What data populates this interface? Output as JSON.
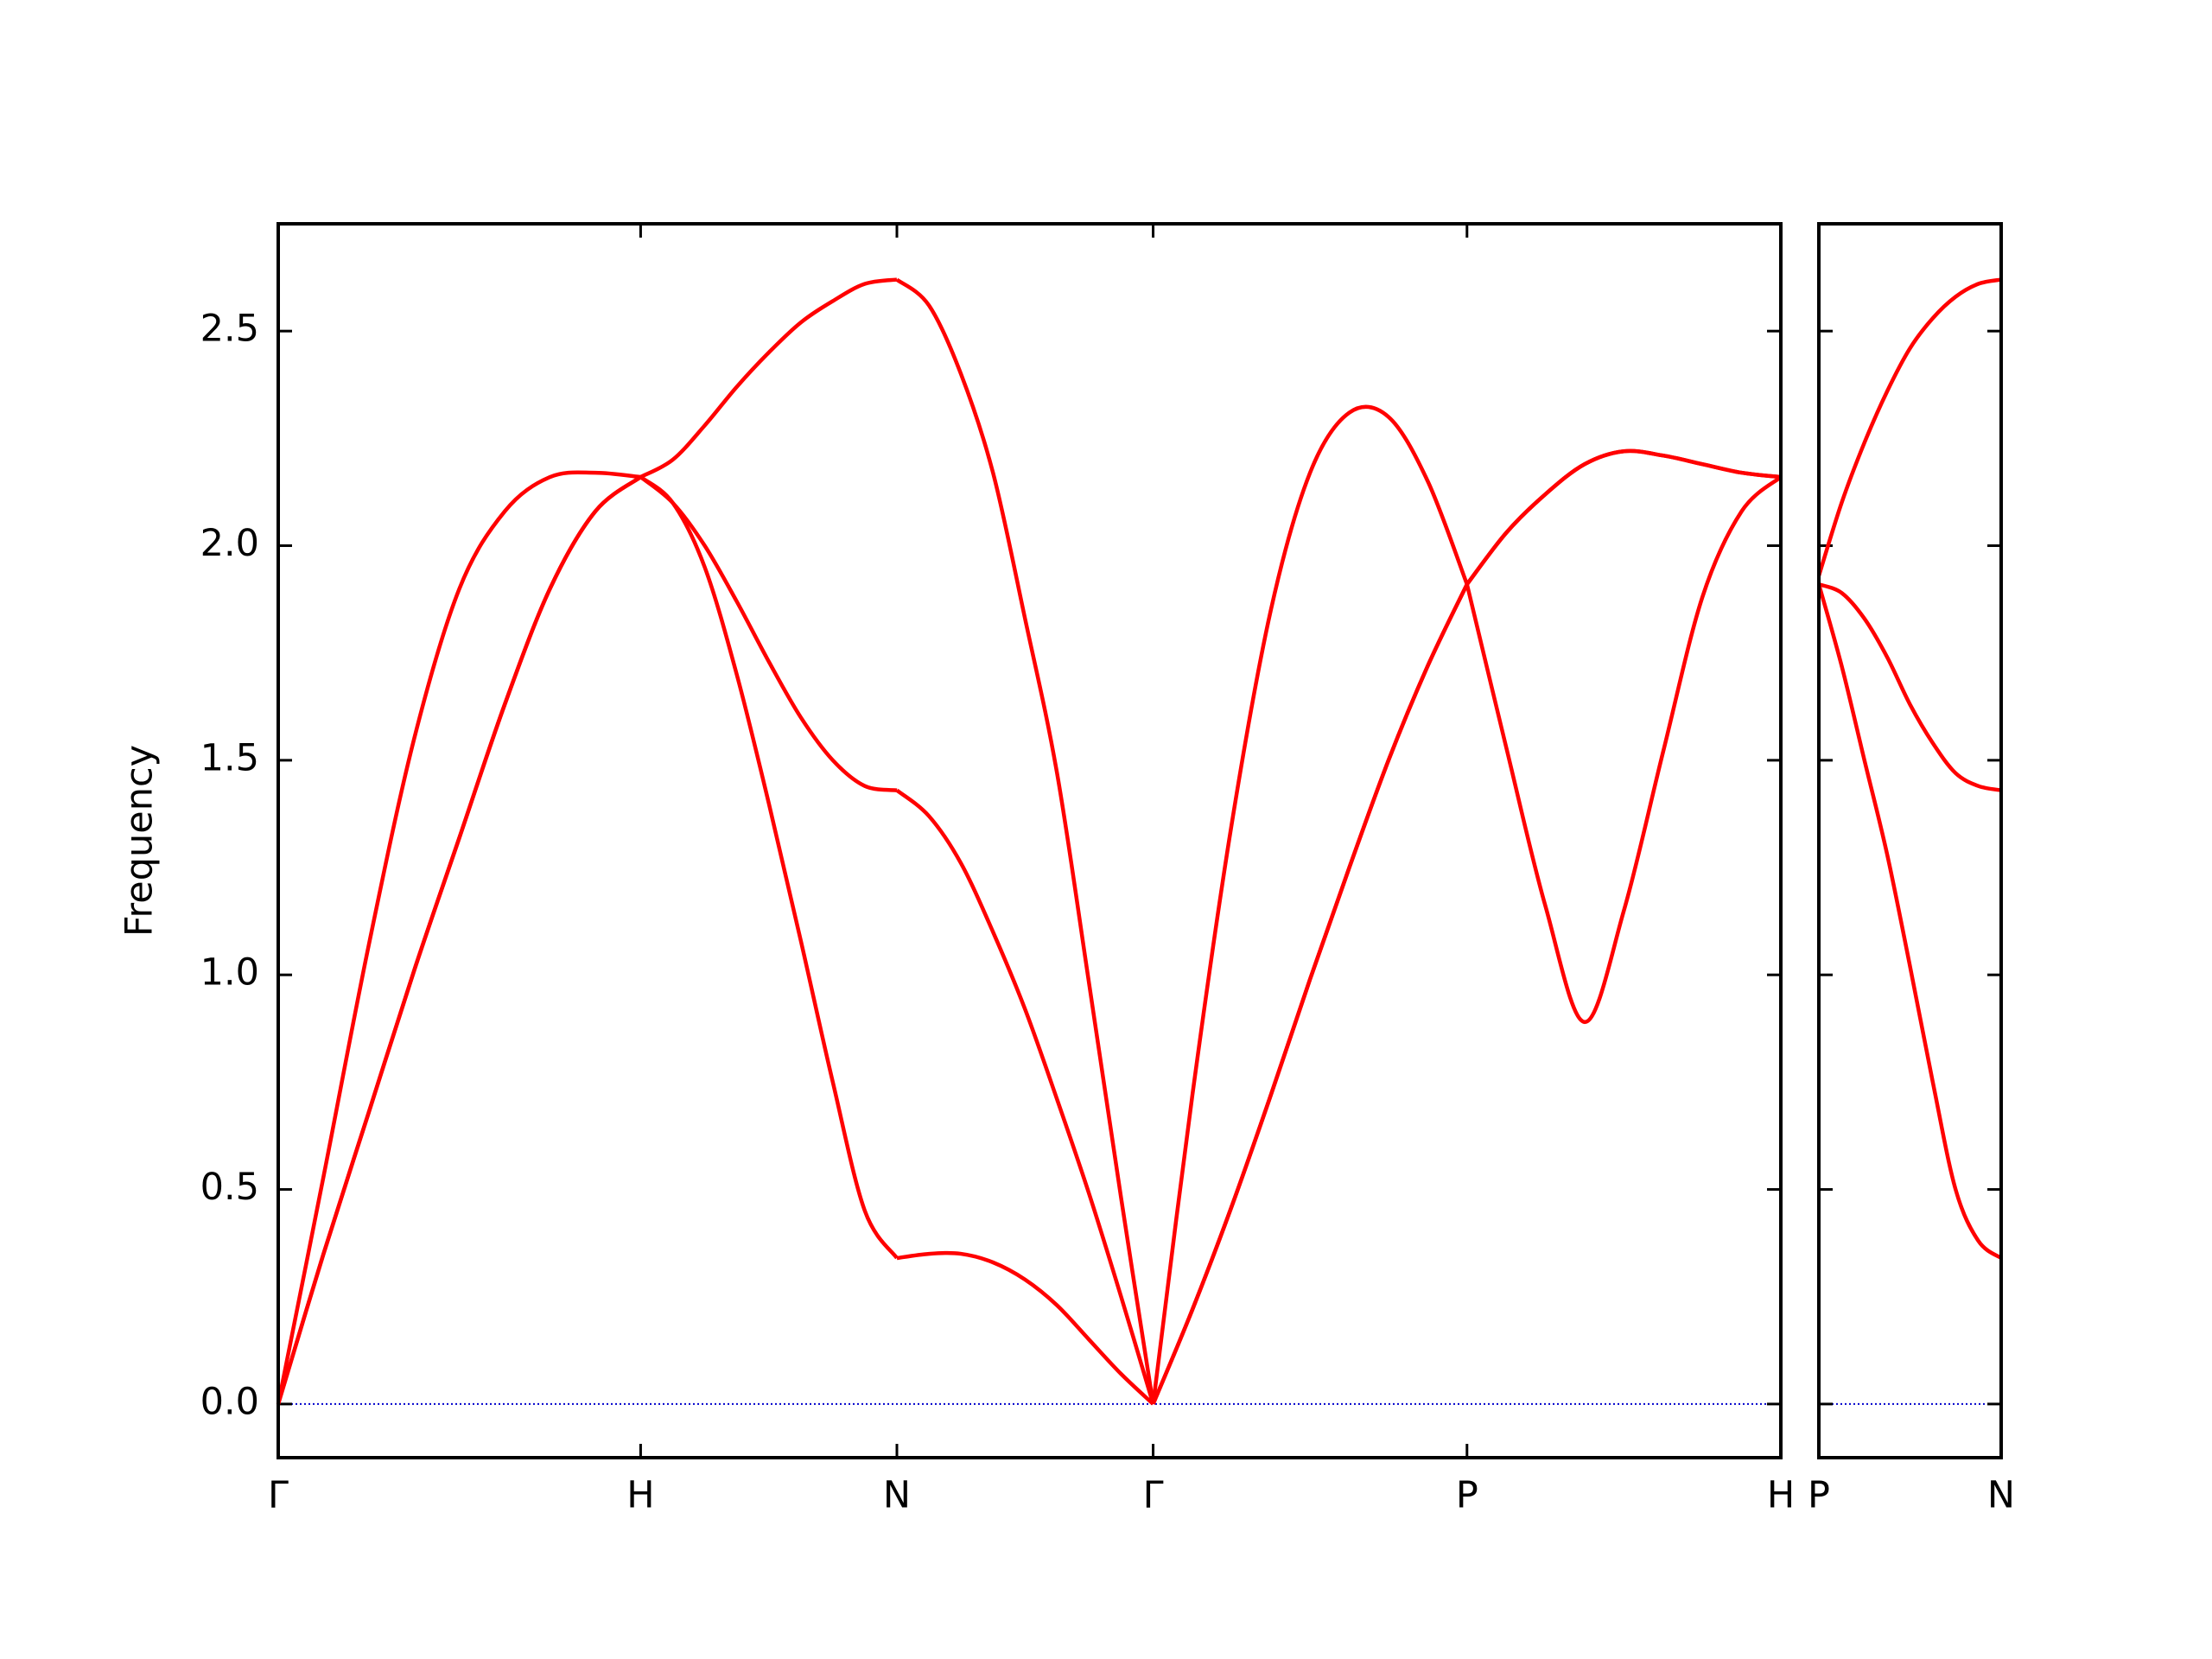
{
  "chart_data": [
    {
      "type": "line",
      "ylabel": "Frequency",
      "x": [
        0,
        0.125,
        0.25,
        0.375,
        0.5,
        0.625,
        0.75,
        0.875,
        1,
        1.0884,
        1.1768,
        1.2652,
        1.3536,
        1.4419,
        1.5303,
        1.6187,
        1.7071,
        1.7955,
        1.8839,
        1.9723,
        2.0607,
        2.149,
        2.2374,
        2.3258,
        2.4142,
        2.5225,
        2.6307,
        2.739,
        2.8472,
        2.9555,
        3.0637,
        3.172,
        3.2802,
        3.3885,
        3.4967,
        3.605,
        3.7132,
        3.8215,
        3.9297,
        4.038,
        4.1462
      ],
      "series": [
        {
          "color": "#ff0000",
          "values": [
            0,
            0.35,
            0.68,
            1.01,
            1.32,
            1.63,
            1.9,
            2.08,
            2.16,
            2.1,
            1.95,
            1.7,
            1.4,
            1.08,
            0.75,
            0.45,
            0.34,
            0.35,
            0.35,
            0.33,
            0.29,
            0.23,
            0.15,
            0.07,
            0,
            0.22,
            0.46,
            0.72,
            0.99,
            1.25,
            1.5,
            1.72,
            1.91,
            2.03,
            2.12,
            2.19,
            2.22,
            2.21,
            2.19,
            2.17,
            2.16
          ]
        },
        {
          "color": "#ff0000",
          "values": [
            0,
            0.35,
            0.68,
            1.01,
            1.32,
            1.63,
            1.9,
            2.08,
            2.16,
            2.1,
            2.0,
            1.87,
            1.73,
            1.6,
            1.5,
            1.44,
            1.43,
            1.37,
            1.26,
            1.1,
            0.92,
            0.71,
            0.49,
            0.25,
            0,
            0.22,
            0.46,
            0.72,
            0.99,
            1.25,
            1.5,
            1.72,
            1.91,
            2.03,
            2.12,
            2.19,
            2.22,
            2.21,
            2.19,
            2.17,
            2.16
          ]
        },
        {
          "color": "#ff0000",
          "values": [
            0,
            0.53,
            1.07,
            1.55,
            1.9,
            2.08,
            2.16,
            2.17,
            2.16,
            2.2,
            2.28,
            2.37,
            2.45,
            2.52,
            2.57,
            2.61,
            2.62,
            2.56,
            2.4,
            2.17,
            1.83,
            1.47,
            0.98,
            0.48,
            0,
            0.72,
            1.35,
            1.85,
            2.17,
            2.31,
            2.3,
            2.15,
            1.91,
            1.53,
            1.16,
            0.89,
            1.15,
            1.52,
            1.88,
            2.08,
            2.16
          ]
        }
      ],
      "xlim": [
        0,
        4.1462
      ],
      "ylim": [
        -0.125,
        2.75
      ],
      "xticks": [
        {
          "value": 0,
          "label": "Γ"
        },
        {
          "value": 1,
          "label": "H"
        },
        {
          "value": 1.7071,
          "label": "N"
        },
        {
          "value": 2.4142,
          "label": "Γ"
        },
        {
          "value": 3.2802,
          "label": "P"
        },
        {
          "value": 4.1462,
          "label": "H"
        }
      ],
      "yticks": [
        {
          "value": 0,
          "label": "0.0"
        },
        0.5,
        {
          "value": 1,
          "label": "1.0"
        },
        1.5,
        {
          "value": 2,
          "label": "2.0"
        },
        2.5
      ],
      "baseline": 0,
      "baseline_color": "#0000cc"
    },
    {
      "type": "line",
      "x": [
        4.1462,
        4.2087,
        4.2712,
        4.3337,
        4.3962,
        4.4587,
        4.5212,
        4.5837,
        4.6462
      ],
      "series": [
        {
          "color": "#ff0000",
          "values": [
            1.91,
            1.72,
            1.5,
            1.28,
            1.02,
            0.75,
            0.5,
            0.38,
            0.34
          ]
        },
        {
          "color": "#ff0000",
          "values": [
            1.91,
            1.89,
            1.83,
            1.74,
            1.63,
            1.54,
            1.47,
            1.44,
            1.43
          ]
        },
        {
          "color": "#ff0000",
          "values": [
            1.93,
            2.1,
            2.24,
            2.36,
            2.46,
            2.53,
            2.58,
            2.61,
            2.62
          ]
        }
      ],
      "xlim": [
        4.1462,
        4.6462
      ],
      "ylim": [
        -0.125,
        2.75
      ],
      "xticks": [
        {
          "value": 4.1462,
          "label": "P"
        },
        {
          "value": 4.6462,
          "label": "N"
        }
      ],
      "yticks": [
        0,
        0.5,
        1,
        1.5,
        2,
        2.5
      ],
      "ytick_labels": false,
      "baseline": 0,
      "baseline_color": "#0000cc"
    }
  ]
}
